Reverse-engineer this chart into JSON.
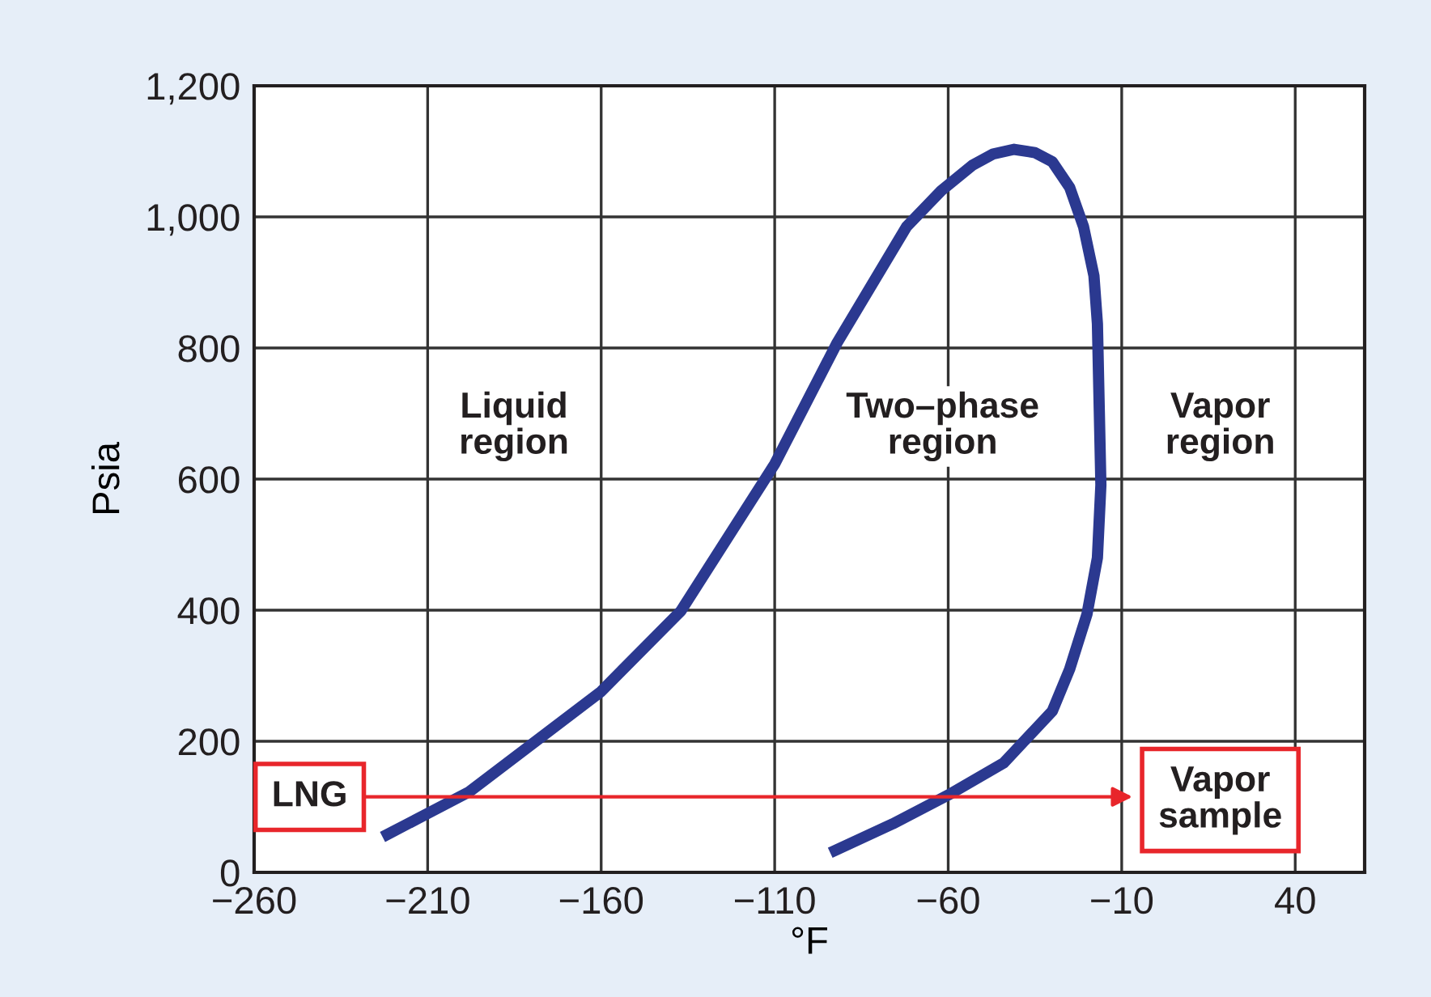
{
  "chart_data": {
    "type": "line",
    "xlabel": "°F",
    "ylabel": "Psia",
    "xlim": [
      -260,
      60
    ],
    "xticks": [
      {
        "value": -260,
        "label": "−260"
      },
      {
        "value": -210,
        "label": "−210"
      },
      {
        "value": -160,
        "label": "−160"
      },
      {
        "value": -110,
        "label": "−110"
      },
      {
        "value": -60,
        "label": "−60"
      },
      {
        "value": -10,
        "label": "−10"
      },
      40
    ],
    "ylim": [
      0,
      1200
    ],
    "yticks": [
      0,
      200,
      400,
      600,
      800,
      {
        "value": 1000,
        "label": "1,000"
      },
      {
        "value": 1200,
        "label": "1,200"
      }
    ],
    "grid": true,
    "legend": false,
    "series": [
      {
        "color": "#2b3990",
        "x": [
          -223,
          -198,
          -160,
          -137,
          -110,
          -92,
          -72,
          -62,
          -53,
          -47,
          -41,
          -35,
          -30,
          -25,
          -21,
          -18,
          -17,
          -16,
          -17,
          -20,
          -25,
          -30,
          -44,
          -60,
          -76,
          -94
        ],
        "values": [
          54,
          123,
          276,
          399,
          623,
          808,
          985,
          1040,
          1079,
          1096,
          1103,
          1098,
          1084,
          1045,
          985,
          910,
          837,
          591,
          480,
          394,
          310,
          246,
          167,
          118,
          74,
          30
        ]
      }
    ],
    "annotations": [
      "Liquid\nregion",
      "Two–phase\nregion",
      "Vapor\nregion",
      "LNG",
      "Vapor\nsample"
    ]
  }
}
